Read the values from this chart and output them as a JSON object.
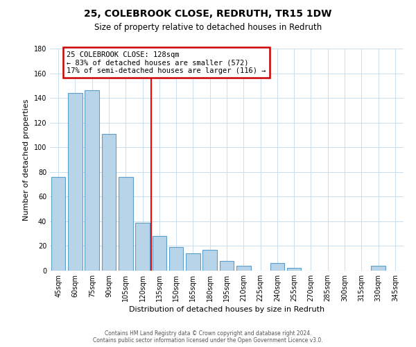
{
  "title": "25, COLEBROOK CLOSE, REDRUTH, TR15 1DW",
  "subtitle": "Size of property relative to detached houses in Redruth",
  "xlabel": "Distribution of detached houses by size in Redruth",
  "ylabel": "Number of detached properties",
  "bar_labels": [
    "45sqm",
    "60sqm",
    "75sqm",
    "90sqm",
    "105sqm",
    "120sqm",
    "135sqm",
    "150sqm",
    "165sqm",
    "180sqm",
    "195sqm",
    "210sqm",
    "225sqm",
    "240sqm",
    "255sqm",
    "270sqm",
    "285sqm",
    "300sqm",
    "315sqm",
    "330sqm",
    "345sqm"
  ],
  "bar_values": [
    76,
    144,
    146,
    111,
    76,
    39,
    28,
    19,
    14,
    17,
    8,
    4,
    0,
    6,
    2,
    0,
    0,
    0,
    0,
    4,
    0
  ],
  "bar_color": "#b8d4e8",
  "bar_edge_color": "#5a9ec9",
  "highlight_label": "25 COLEBROOK CLOSE: 128sqm",
  "annotation_line1": "← 83% of detached houses are smaller (572)",
  "annotation_line2": "17% of semi-detached houses are larger (116) →",
  "box_color": "#cc0000",
  "ylim": [
    0,
    180
  ],
  "yticks": [
    0,
    20,
    40,
    60,
    80,
    100,
    120,
    140,
    160,
    180
  ],
  "footer_line1": "Contains HM Land Registry data © Crown copyright and database right 2024.",
  "footer_line2": "Contains public sector information licensed under the Open Government Licence v3.0."
}
